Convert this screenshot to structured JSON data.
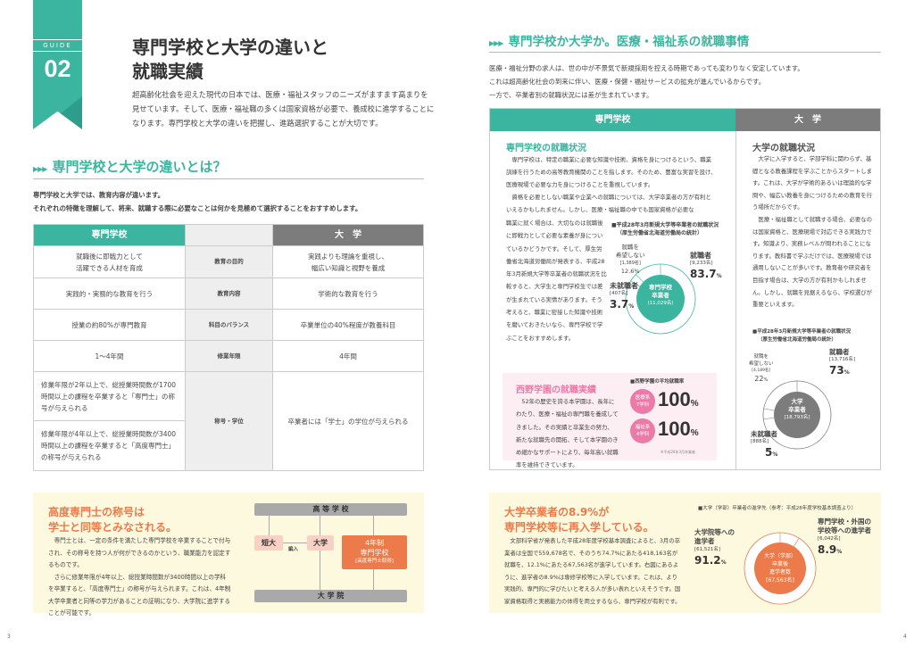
{
  "left": {
    "guide_label": "GUIDE",
    "guide_number": "02",
    "title_line1": "専門学校と大学の違いと",
    "title_line2": "就職実績",
    "intro": [
      "超高齢化社会を迎えた現代の日本では、医療・福祉スタッフのニーズがますます高まりを",
      "見せています。そして、医療・福祉職の多くは国家資格が必要で、養成校に進学することに",
      "なります。専門学校と大学の違いを把握し、進路選択することが大切です。"
    ],
    "section_title": "専門学校と大学の違いとは？",
    "section_text": [
      "専門学校と大学では、教育内容が違います。",
      "それぞれの特徴を理解して、将来、就職する際に必要なことは何かを見極めて選択することをおすすめします。"
    ],
    "table": {
      "col_senmon": "専門学校",
      "col_daigaku": "大　学",
      "rows": [
        {
          "senmon": "就職後に即戦力として\n活躍できる人材を育成",
          "item": "教育の目的",
          "daigaku": "実践よりも理論を重視し、\n幅広い知識と視野を養成"
        },
        {
          "senmon": "実践的・実務的な教育を行う",
          "item": "教育内容",
          "daigaku": "学術的な教育を行う"
        },
        {
          "senmon": "授業の約80%が専門教育",
          "item": "科目のバランス",
          "daigaku": "卒業単位の40%程度が教養科目"
        },
        {
          "senmon": "1〜4年間",
          "item": "修業年限",
          "daigaku": "4年間"
        }
      ],
      "degree": {
        "senmon_a": "修業年限が2年以上で、総授業時間数が1700時間以上の課程を卒業すると「専門士」の称号が与えられる",
        "senmon_b": "修業年限が4年以上で、総授業時間数が3400時間以上の課程を卒業すると「高度専門士」の称号が与えられる",
        "item": "称号・学位",
        "daigaku": "卒業者には「学士」の学位が与えられる"
      }
    },
    "box": {
      "title_line1": "高度専門士の称号は",
      "title_line2": "学士と同等とみなされる。",
      "text1": "専門士とは、一定の条件を満たした専門学校を卒業することで付与され、その称号を持つ人が何ができるのかという、職業能力を認定するものです。",
      "text2": "さらに修業年限が4年以上、総授業時間数が3400時間以上の学科を卒業すると、「高度専門士」の称号が与えられます。これは、4年制大学卒業者と同等の学力があることの証明になり、大学院に進学することが可能です。",
      "flow": {
        "koukou": "高 等 学 校",
        "tandai": "短大",
        "hennyu": "編入",
        "daigaku": "大学",
        "senmon4_1": "4年制",
        "senmon4_2": "専門学校",
        "senmon4_3": "[高度専門士取得]",
        "daigakuin": "大 学 院"
      }
    },
    "page_number": "3"
  },
  "right": {
    "section_title": "専門学校か大学か。医療・福祉系の就職事情",
    "intro": [
      "医療・福祉分野の求人は、世の中が不景気で新規採用を控える時期であっても変わりなく安定しています。",
      "これは超高齢化社会の到来に伴い、医療・保健・福祉サービスの拡充が進んでいるからです。",
      "一方で、卒業者別の就職状況には差が生まれています。"
    ],
    "col_senmon": "専門学校",
    "col_daigaku": "大　学",
    "senmon": {
      "title": "専門学校の就職状況",
      "text_top": "　専門学校は、特定の職業に必要な知識や技術、資格を身につけるという、職業訓練を行うための高等教育機関のことを指します。そのため、豊富な実習を設け、医療現場で必要な力を身につけることを重視しています。\n　資格を必要としない職業や企業への就職については、大学卒業者の方が有利といえるかもしれません。しかし、医療・福祉職の中でも国家資格が必要な",
      "text_side": "職業に就く場合は、大切なのは就職後に即戦力として必要な素養が身についているかどうかです。そして、厚生労働省北海道労働局が発表する、平成28年3月新規大学等卒業者の就職状況を比較すると、大学生と専門学校生では差が生まれている実情があります。そう考えると、職業に密接した知識や技術を磨いておきたいなら、専門学校で学ぶことをおすすめします。",
      "chart_title1": "■平成28年3月新規大学等卒業者の就職状況",
      "chart_title2": "（厚生労働省北海道労働局の統計）",
      "center": [
        "専門学校",
        "卒業者",
        "(11,029名)"
      ],
      "employed": {
        "label": "就職者",
        "count": "[9,233名]",
        "pct": "83.7",
        "value": 83.7
      },
      "not_seeking": {
        "label1": "就職を",
        "label2": "希望しない",
        "count": "[1,389名]",
        "pct": "12.6%",
        "value": 12.6
      },
      "unemployed": {
        "label": "未就職者",
        "count": "[407名]",
        "pct": "3.7",
        "value": 3.7
      },
      "color": "#3bb5a0"
    },
    "nishino": {
      "title": "西野学園の就職実績",
      "text": "　52年の歴史を誇る本学園は、長年にわたり、医療・福祉の専門職を養成してきました。その実績と卒業生の努力、新たな就職先の開拓、そして本学園のきめ細かなサポートにより、毎年高い就職率を維持できています。",
      "badge_title": "■西野学園の平均就職率",
      "items": [
        {
          "badge1": "医療系",
          "badge2": "7学科",
          "pct": "100"
        },
        {
          "badge1": "福祉系",
          "badge2": "4学科",
          "pct": "100"
        }
      ],
      "pct_unit": "%",
      "note": "※平成29年3月卒業者",
      "color": "#ec7aa9"
    },
    "daigaku": {
      "title": "大学の就職状況",
      "text": "　大学に入学すると、学部学科に関わらず、基礎となる教養課程を学ぶことからスタートします。これは、大学が学術的あるいは理論的な学問や、幅広い教養を身につけるための教育を行う場所だからです。\n　医療・福祉職として就職する場合、必要なのは国家資格と、医療現場で対応できる実践力です。知識より、実務レベルが問われることになります。教科書で学ぶだけでは、医療現場では通用しないことが多いです。教育者や研究者を目指す場合は、大学の方が有利かもしれません。しかし、就職を見据えるなら、学校選びが重要といえます。",
      "chart_title1": "■平成28年3月新規大学等卒業者の就職状況",
      "chart_title2": "（厚生労働省北海道労働局の統計）",
      "center": [
        "大学",
        "卒業者",
        "[18,793名]"
      ],
      "employed": {
        "label": "就職者",
        "count": "[13,716名]",
        "pct": "73",
        "value": 73
      },
      "not_seeking": {
        "label1": "就職を",
        "label2": "希望しない",
        "count": "[4,189名]",
        "pct": "22",
        "value": 22
      },
      "unemployed": {
        "label": "未就職者",
        "count": "[888名]",
        "pct": "5",
        "value": 5
      },
      "color": "#7c7c7c"
    },
    "box": {
      "title_line1": "大学卒業者の8.9%が",
      "title_line2": "専門学校等に再入学している。",
      "text": "　文部科学省が発表した平成28年度学校基本調査によると、3月の卒業者は全国で559,678名で、そのうち74.7%にあたる418,163名が就職を、12.1%にあたる67,563名が進学しています。右図にあるように、進学者の8.9%は専修学校等に入学しています。これは、より実践的、専門的に学びたいと考える人が多い表れといえそうです。国家資格取得と実務能力の体得を両立するなら、専門学校が有利です。",
      "chart_title": "■大学（学部）卒業者の進学先（参考：平成28年度学校基本調査より）",
      "center": [
        "大学（学部）",
        "卒業後",
        "進学者数",
        "[67,563名]"
      ],
      "grad": {
        "label1": "大学院等への",
        "label2": "進学者",
        "count": "[61,521名]",
        "pct": "91.2",
        "value": 91.2
      },
      "senmon": {
        "label1": "専門学校・外国の",
        "label2": "学校等への進学者",
        "count": "[6,042名]",
        "pct": "8.9",
        "value": 8.9
      },
      "pct_unit": "%",
      "color": "#ec7a4a"
    },
    "page_number": "4"
  }
}
